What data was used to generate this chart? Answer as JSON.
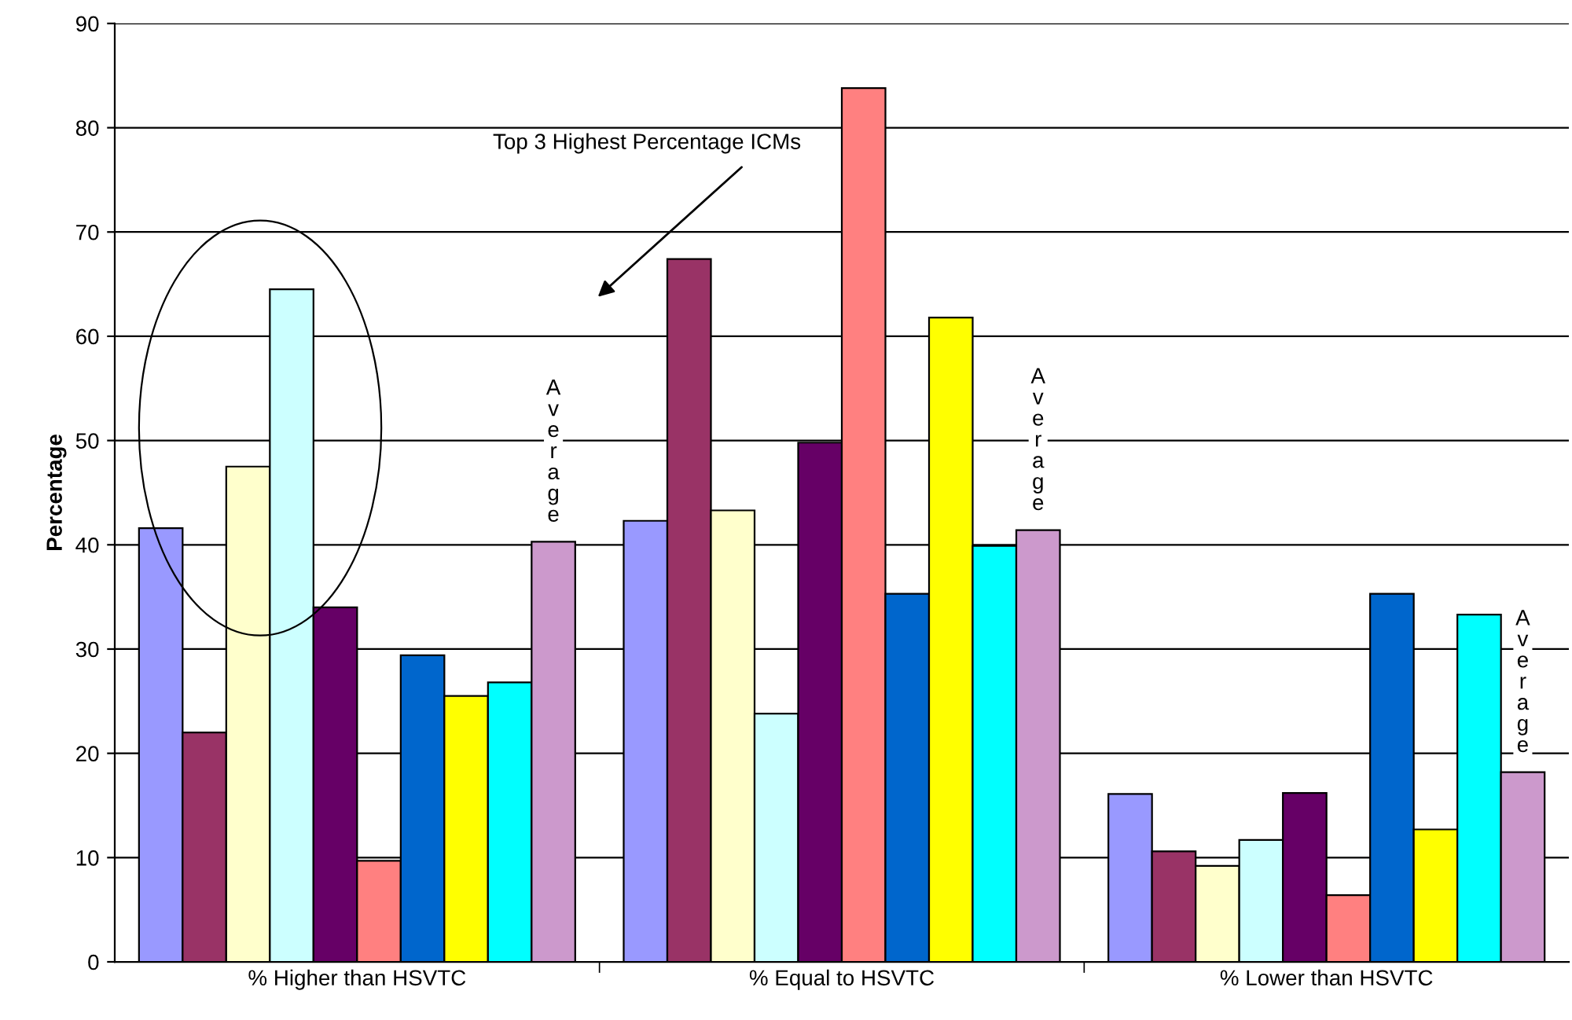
{
  "chart_data": {
    "type": "bar",
    "ylabel": "Percentage",
    "categories": [
      "% Higher than HSVTC",
      "% Equal to HSVTC",
      "% Lower than HSVTC"
    ],
    "series": [
      {
        "color": "#9999ff",
        "values": [
          41.6,
          42.3,
          16.1
        ]
      },
      {
        "color": "#993366",
        "values": [
          22.0,
          67.4,
          10.6
        ]
      },
      {
        "color": "#ffffcc",
        "values": [
          47.5,
          43.3,
          9.2
        ]
      },
      {
        "color": "#ccffff",
        "values": [
          64.5,
          23.8,
          11.7
        ]
      },
      {
        "color": "#660066",
        "values": [
          34.0,
          49.8,
          16.2
        ]
      },
      {
        "color": "#ff8080",
        "values": [
          9.7,
          83.8,
          6.4
        ]
      },
      {
        "color": "#0066cc",
        "values": [
          29.4,
          35.3,
          35.3
        ]
      },
      {
        "color": "#ffff00",
        "values": [
          25.5,
          61.8,
          12.7
        ]
      },
      {
        "color": "#00ffff",
        "values": [
          26.8,
          39.9,
          33.3
        ]
      },
      {
        "color": "#cc99cc",
        "values": [
          40.3,
          41.4,
          18.2
        ]
      }
    ],
    "ylim": [
      0,
      90
    ],
    "yticks": [
      0,
      10,
      20,
      30,
      40,
      50,
      60,
      70,
      80,
      90
    ],
    "grid": "y",
    "legend": false,
    "annotations": [
      "Top 3 Highest Percentage ICMs",
      "Average",
      "Average",
      "Average"
    ]
  }
}
